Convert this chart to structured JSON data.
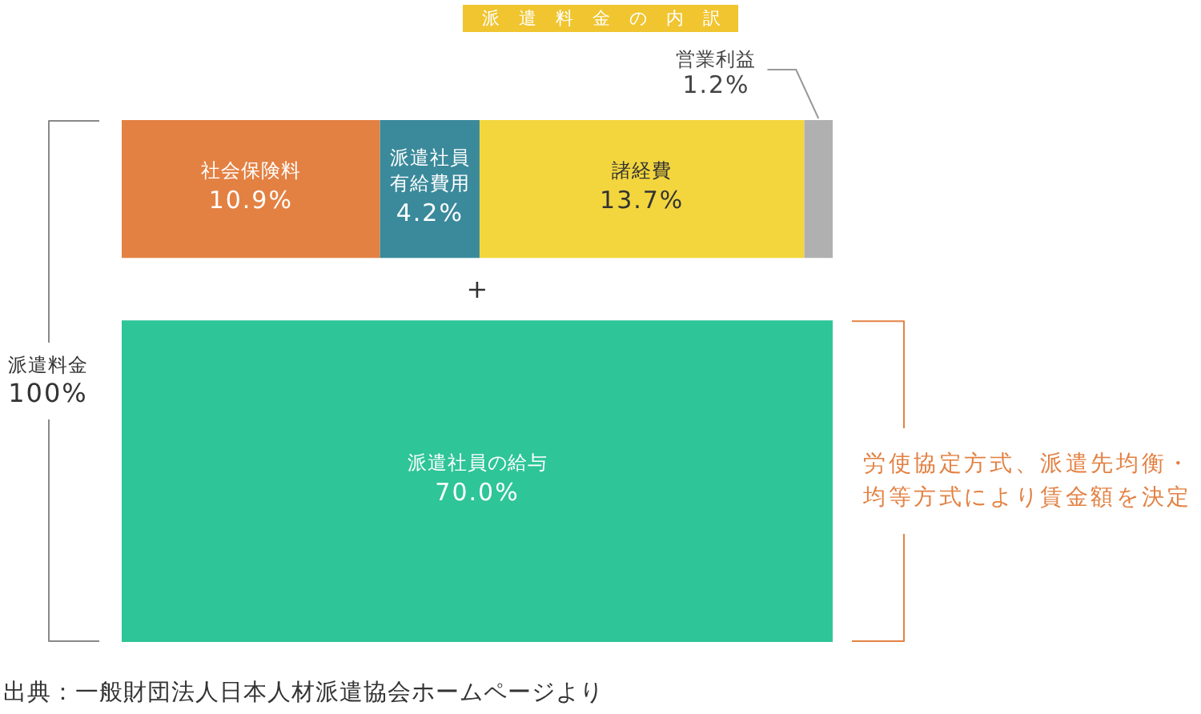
{
  "chart_data": {
    "type": "other",
    "title": "派遣料金の内訳",
    "categories": [
      "社会保険料",
      "派遣社員有給費用",
      "諸経費",
      "営業利益",
      "派遣社員の給与"
    ],
    "series": [
      {
        "values": [
          10.9,
          4.2,
          13.7,
          1.2,
          null
        ],
        "colors": [
          "#e38143",
          "#3a8a9b",
          "#f3d63e",
          "#b0b0b0",
          null
        ],
        "value_labels": [
          "10.9%",
          "4.2%",
          "13.7%",
          "1.2%",
          null
        ]
      },
      {
        "values": [
          null,
          null,
          null,
          null,
          70.0
        ],
        "colors": [
          null,
          null,
          null,
          null,
          "#2ec598"
        ],
        "value_labels": [
          null,
          null,
          null,
          null,
          "70.0%"
        ]
      }
    ],
    "annotations": [
      "派遣料金\n100%",
      "+",
      "労使協定方式、派遣先均衡・均等方式により賃金額を決定",
      "出典：一般財団法人日本人材派遣協会ホームページより"
    ]
  }
}
